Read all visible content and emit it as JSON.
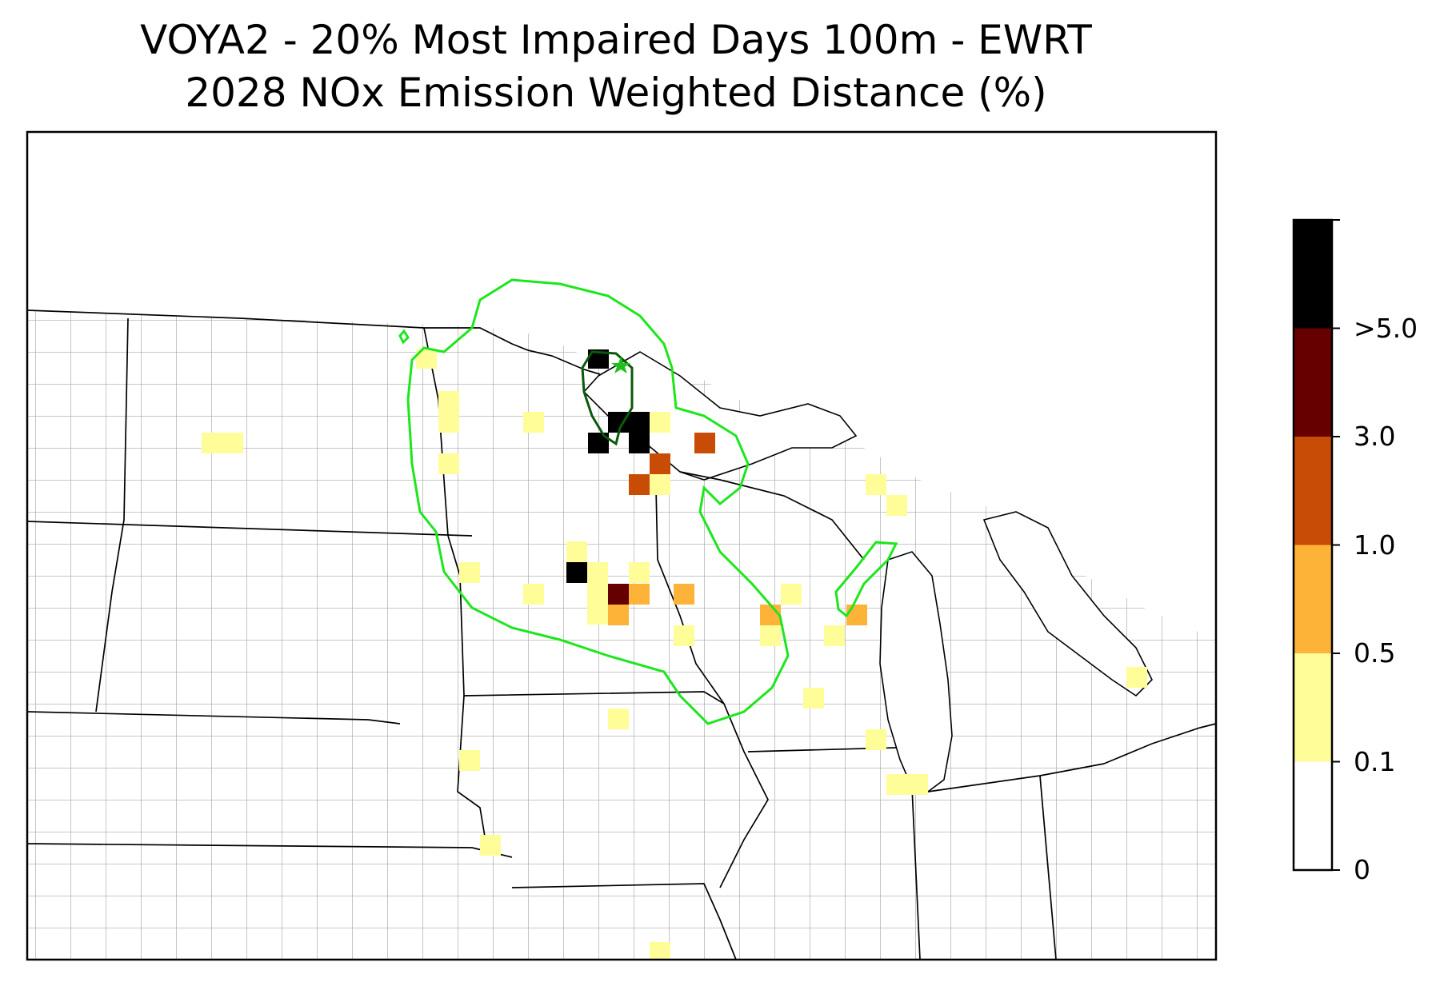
{
  "title": {
    "line1": "VOYA2 - 20% Most Impaired Days 100m - EWRT",
    "line2": "2028 NOx Emission Weighted Distance (%)"
  },
  "colorbar": {
    "bins": [
      {
        "color": "#ffffff"
      },
      {
        "color": "#fffd98"
      },
      {
        "color": "#fdb238"
      },
      {
        "color": "#c84c05"
      },
      {
        "color": "#660000"
      },
      {
        "color": "#000000"
      }
    ],
    "tick_labels": [
      "0",
      "0.1",
      "0.5",
      "1.0",
      "3.0",
      ">5.0"
    ]
  },
  "map": {
    "state_outline_color": "#000000",
    "county_outline_color": "#a8a8a8",
    "contour_outer_color": "#1de61d",
    "contour_inner_color": "#0a5a0a",
    "site_marker_color": "#1ec01e",
    "site_marker_icon": "star-icon"
  }
}
